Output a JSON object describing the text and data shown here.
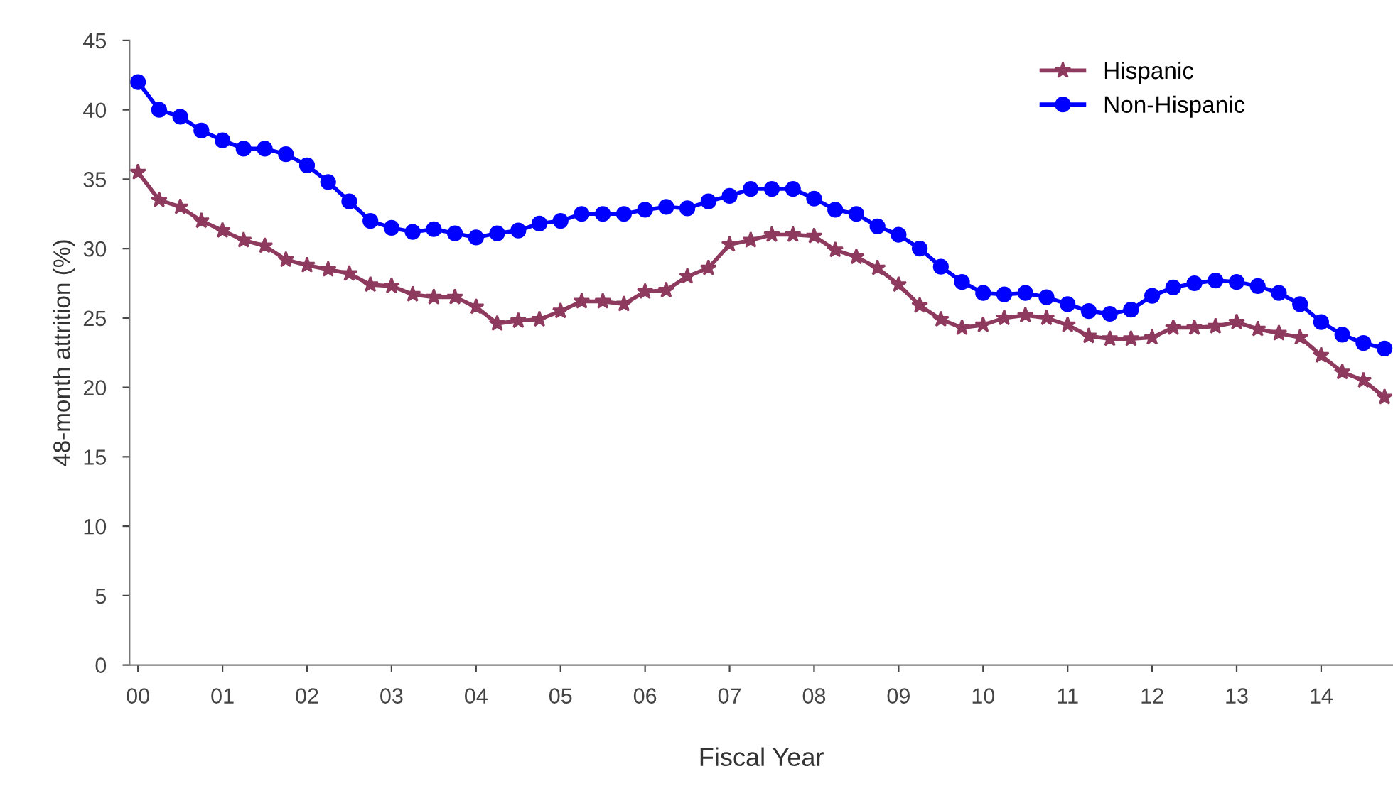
{
  "chart_data": {
    "type": "line",
    "xlabel": "Fiscal Year",
    "ylabel": "48-month attrition (%)",
    "x": [
      0,
      0.25,
      0.5,
      0.75,
      1,
      1.25,
      1.5,
      1.75,
      2,
      2.25,
      2.5,
      2.75,
      3,
      3.25,
      3.5,
      3.75,
      4,
      4.25,
      4.5,
      4.75,
      5,
      5.25,
      5.5,
      5.75,
      6,
      6.25,
      6.5,
      6.75,
      7,
      7.25,
      7.5,
      7.75,
      8,
      8.25,
      8.5,
      8.75,
      9,
      9.25,
      9.5,
      9.75,
      10,
      10.25,
      10.5,
      10.75,
      11,
      11.25,
      11.5,
      11.75,
      12,
      12.25,
      12.5,
      12.75,
      13,
      13.25,
      13.5,
      13.75,
      14,
      14.25,
      14.5,
      14.75
    ],
    "series": [
      {
        "name": "Hispanic",
        "color": "#8e3a5e",
        "marker": "star",
        "values": [
          35.5,
          33.5,
          33,
          32,
          31.3,
          30.6,
          30.2,
          29.2,
          28.8,
          28.5,
          28.2,
          27.4,
          27.3,
          26.7,
          26.5,
          26.5,
          25.8,
          24.6,
          24.8,
          24.9,
          25.5,
          26.2,
          26.2,
          26,
          26.9,
          27,
          28,
          28.6,
          30.3,
          30.6,
          31,
          31,
          30.9,
          29.9,
          29.4,
          28.6,
          27.4,
          25.9,
          24.9,
          24.3,
          24.5,
          25,
          25.2,
          25,
          24.5,
          23.7,
          23.5,
          23.5,
          23.6,
          24.3,
          24.3,
          24.4,
          24.7,
          24.2,
          23.9,
          23.6,
          22.3,
          21.1,
          20.5,
          19.3
        ]
      },
      {
        "name": "Non-Hispanic",
        "color": "#0000ff",
        "marker": "circle",
        "values": [
          42,
          40,
          39.5,
          38.5,
          37.8,
          37.2,
          37.2,
          36.8,
          36,
          34.8,
          33.4,
          32,
          31.5,
          31.2,
          31.4,
          31.1,
          30.8,
          31.1,
          31.3,
          31.8,
          32,
          32.5,
          32.5,
          32.5,
          32.8,
          33,
          32.9,
          33.4,
          33.8,
          34.3,
          34.3,
          34.3,
          33.6,
          32.8,
          32.5,
          31.6,
          31,
          30,
          28.7,
          27.6,
          26.8,
          26.7,
          26.8,
          26.5,
          26,
          25.5,
          25.3,
          25.6,
          26.6,
          27.2,
          27.5,
          27.7,
          27.6,
          27.3,
          26.8,
          26,
          24.7,
          23.8,
          23.2,
          22.8
        ]
      }
    ],
    "xlim": [
      -0.1,
      14.85
    ],
    "xticks": [
      {
        "value": 0,
        "label": "00"
      },
      {
        "value": 1,
        "label": "01"
      },
      {
        "value": 2,
        "label": "02"
      },
      {
        "value": 3,
        "label": "03"
      },
      {
        "value": 4,
        "label": "04"
      },
      {
        "value": 5,
        "label": "05"
      },
      {
        "value": 6,
        "label": "06"
      },
      {
        "value": 7,
        "label": "07"
      },
      {
        "value": 8,
        "label": "08"
      },
      {
        "value": 9,
        "label": "09"
      },
      {
        "value": 10,
        "label": "10"
      },
      {
        "value": 11,
        "label": "11"
      },
      {
        "value": 12,
        "label": "12"
      },
      {
        "value": 13,
        "label": "13"
      },
      {
        "value": 14,
        "label": "14"
      }
    ],
    "ylim": [
      0,
      45
    ],
    "yticks": [
      0,
      5,
      10,
      15,
      20,
      25,
      30,
      35,
      40,
      45
    ],
    "grid": false,
    "legend": "top right",
    "line_style": "solid"
  }
}
